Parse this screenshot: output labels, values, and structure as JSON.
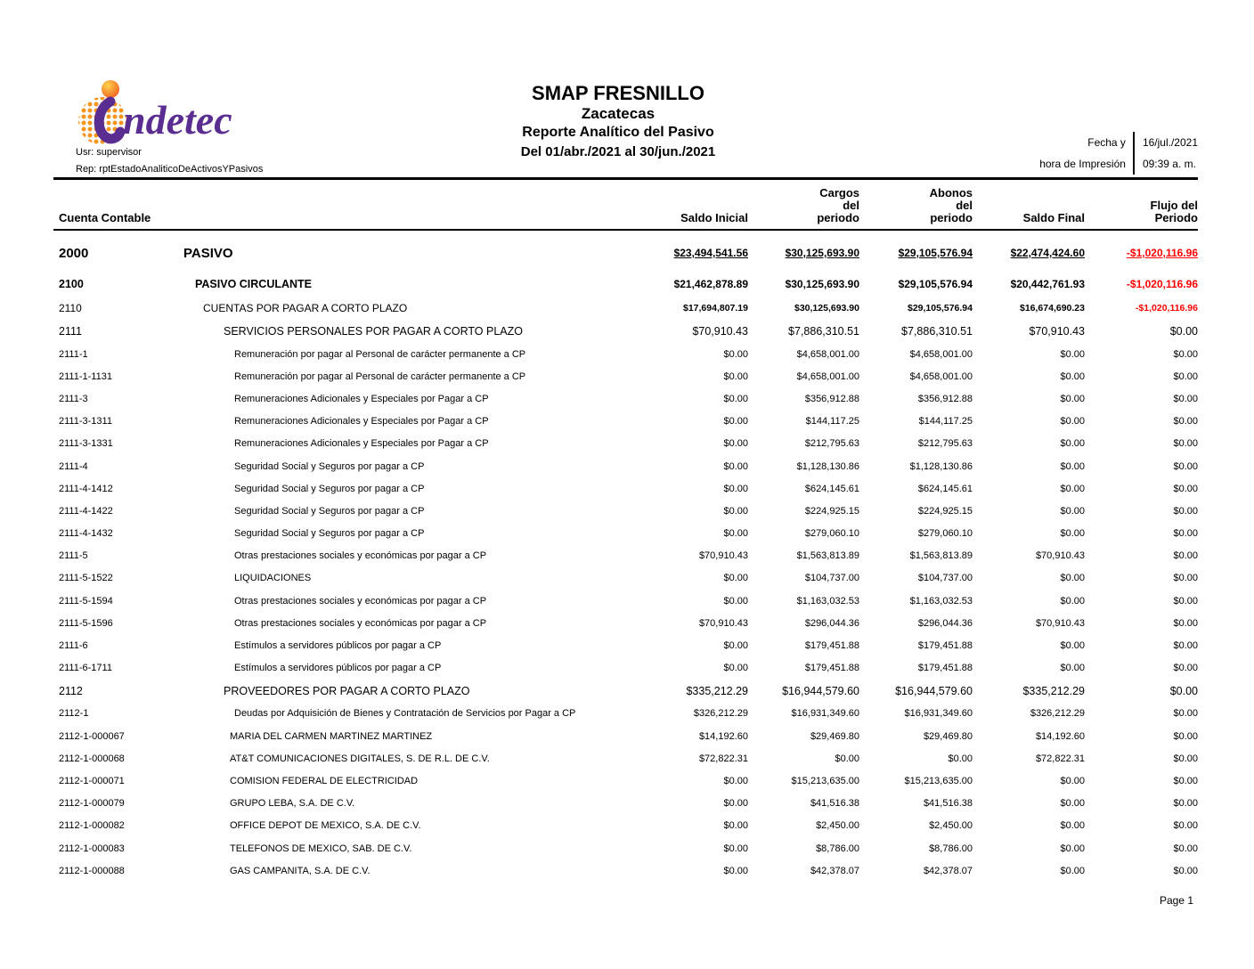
{
  "logo": {
    "name": "indetec",
    "text": "ndetec"
  },
  "meta": {
    "user_line": "Usr: supervisor",
    "report_line": "Rep: rptEstadoAnaliticoDeActivosYPasivos"
  },
  "title": {
    "line1": "SMAP FRESNILLO",
    "line2": "Zacatecas",
    "line3": "Reporte Analítico del Pasivo",
    "line4": "Del 01/abr./2021 al 30/jun./2021"
  },
  "print_info": {
    "label_line1": "Fecha y",
    "label_line2": "hora de Impresión",
    "date": "16/jul./2021",
    "time": "09:39 a. m."
  },
  "table": {
    "account_header": "Cuenta Contable",
    "columns": {
      "saldo_inicial": "Saldo Inicial",
      "cargos": "Cargos\ndel\nperiodo",
      "abonos": "Abonos\ndel\nperiodo",
      "saldo_final": "Saldo Final",
      "flujo": "Flujo del\nPeriodo"
    },
    "rows": [
      {
        "code": "2000",
        "desc": "PASIVO",
        "level": 0,
        "values": [
          "$23,494,541.56",
          "$30,125,693.90",
          "$29,105,576.94",
          "$22,474,424.60",
          "-$1,020,116.96"
        ]
      },
      {
        "code": "2100",
        "desc": "PASIVO CIRCULANTE",
        "level": 1,
        "values": [
          "$21,462,878.89",
          "$30,125,693.90",
          "$29,105,576.94",
          "$20,442,761.93",
          "-$1,020,116.96"
        ]
      },
      {
        "code": "2110",
        "desc": "CUENTAS POR PAGAR A CORTO PLAZO",
        "level": 2,
        "values": [
          "$17,694,807.19",
          "$30,125,693.90",
          "$29,105,576.94",
          "$16,674,690.23",
          "-$1,020,116.96"
        ]
      },
      {
        "code": "2111",
        "desc": "SERVICIOS PERSONALES POR PAGAR A CORTO PLAZO",
        "level": 3,
        "values": [
          "$70,910.43",
          "$7,886,310.51",
          "$7,886,310.51",
          "$70,910.43",
          "$0.00"
        ]
      },
      {
        "code": "2111-1",
        "desc": "Remuneración por pagar al Personal de carácter permanente a CP",
        "level": 4,
        "values": [
          "$0.00",
          "$4,658,001.00",
          "$4,658,001.00",
          "$0.00",
          "$0.00"
        ]
      },
      {
        "code": "2111-1-1131",
        "desc": "Remuneración por pagar al Personal de carácter permanente a CP",
        "level": 4,
        "values": [
          "$0.00",
          "$4,658,001.00",
          "$4,658,001.00",
          "$0.00",
          "$0.00"
        ]
      },
      {
        "code": "2111-3",
        "desc": "Remuneraciones Adicionales y Especiales por Pagar a CP",
        "level": 4,
        "values": [
          "$0.00",
          "$356,912.88",
          "$356,912.88",
          "$0.00",
          "$0.00"
        ]
      },
      {
        "code": "2111-3-1311",
        "desc": "Remuneraciones Adicionales y Especiales por Pagar a CP",
        "level": 4,
        "values": [
          "$0.00",
          "$144,117.25",
          "$144,117.25",
          "$0.00",
          "$0.00"
        ]
      },
      {
        "code": "2111-3-1331",
        "desc": "Remuneraciones Adicionales y Especiales por Pagar a CP",
        "level": 4,
        "values": [
          "$0.00",
          "$212,795.63",
          "$212,795.63",
          "$0.00",
          "$0.00"
        ]
      },
      {
        "code": "2111-4",
        "desc": "Seguridad Social y Seguros por pagar a CP",
        "level": 4,
        "values": [
          "$0.00",
          "$1,128,130.86",
          "$1,128,130.86",
          "$0.00",
          "$0.00"
        ]
      },
      {
        "code": "2111-4-1412",
        "desc": "Seguridad Social y Seguros por pagar a CP",
        "level": 4,
        "values": [
          "$0.00",
          "$624,145.61",
          "$624,145.61",
          "$0.00",
          "$0.00"
        ]
      },
      {
        "code": "2111-4-1422",
        "desc": "Seguridad Social y Seguros por pagar a CP",
        "level": 4,
        "values": [
          "$0.00",
          "$224,925.15",
          "$224,925.15",
          "$0.00",
          "$0.00"
        ]
      },
      {
        "code": "2111-4-1432",
        "desc": "Seguridad Social y Seguros por pagar a CP",
        "level": 4,
        "values": [
          "$0.00",
          "$279,060.10",
          "$279,060.10",
          "$0.00",
          "$0.00"
        ]
      },
      {
        "code": "2111-5",
        "desc": "Otras prestaciones sociales y económicas por pagar a CP",
        "level": 4,
        "values": [
          "$70,910.43",
          "$1,563,813.89",
          "$1,563,813.89",
          "$70,910.43",
          "$0.00"
        ]
      },
      {
        "code": "2111-5-1522",
        "desc": "LIQUIDACIONES",
        "level": 4,
        "values": [
          "$0.00",
          "$104,737.00",
          "$104,737.00",
          "$0.00",
          "$0.00"
        ]
      },
      {
        "code": "2111-5-1594",
        "desc": "Otras prestaciones sociales y económicas por pagar a CP",
        "level": 4,
        "values": [
          "$0.00",
          "$1,163,032.53",
          "$1,163,032.53",
          "$0.00",
          "$0.00"
        ]
      },
      {
        "code": "2111-5-1596",
        "desc": "Otras prestaciones sociales y económicas por pagar a CP",
        "level": 4,
        "values": [
          "$70,910.43",
          "$296,044.36",
          "$296,044.36",
          "$70,910.43",
          "$0.00"
        ]
      },
      {
        "code": "2111-6",
        "desc": "Estímulos a servidores públicos por pagar a CP",
        "level": 4,
        "values": [
          "$0.00",
          "$179,451.88",
          "$179,451.88",
          "$0.00",
          "$0.00"
        ]
      },
      {
        "code": "2111-6-1711",
        "desc": "Estímulos a servidores públicos por pagar a CP",
        "level": 4,
        "values": [
          "$0.00",
          "$179,451.88",
          "$179,451.88",
          "$0.00",
          "$0.00"
        ]
      },
      {
        "code": "2112",
        "desc": "PROVEEDORES POR PAGAR A CORTO PLAZO",
        "level": 3,
        "values": [
          "$335,212.29",
          "$16,944,579.60",
          "$16,944,579.60",
          "$335,212.29",
          "$0.00"
        ]
      },
      {
        "code": "2112-1",
        "desc": "Deudas por Adquisición de Bienes y Contratación de Servicios por Pagar a CP",
        "level": 4,
        "values": [
          "$326,212.29",
          "$16,931,349.60",
          "$16,931,349.60",
          "$326,212.29",
          "$0.00"
        ]
      },
      {
        "code": "2112-1-000067",
        "desc": "MARIA DEL CARMEN MARTINEZ MARTINEZ",
        "level": 5,
        "values": [
          "$14,192.60",
          "$29,469.80",
          "$29,469.80",
          "$14,192.60",
          "$0.00"
        ]
      },
      {
        "code": "2112-1-000068",
        "desc": "AT&T COMUNICACIONES DIGITALES, S. DE R.L. DE C.V.",
        "level": 5,
        "values": [
          "$72,822.31",
          "$0.00",
          "$0.00",
          "$72,822.31",
          "$0.00"
        ]
      },
      {
        "code": "2112-1-000071",
        "desc": "COMISION FEDERAL DE ELECTRICIDAD",
        "level": 5,
        "values": [
          "$0.00",
          "$15,213,635.00",
          "$15,213,635.00",
          "$0.00",
          "$0.00"
        ]
      },
      {
        "code": "2112-1-000079",
        "desc": "GRUPO LEBA, S.A. DE C.V.",
        "level": 5,
        "values": [
          "$0.00",
          "$41,516.38",
          "$41,516.38",
          "$0.00",
          "$0.00"
        ]
      },
      {
        "code": "2112-1-000082",
        "desc": "OFFICE DEPOT DE MEXICO, S.A. DE C.V.",
        "level": 5,
        "values": [
          "$0.00",
          "$2,450.00",
          "$2,450.00",
          "$0.00",
          "$0.00"
        ]
      },
      {
        "code": "2112-1-000083",
        "desc": "TELEFONOS DE MEXICO, SAB. DE C.V.",
        "level": 5,
        "values": [
          "$0.00",
          "$8,786.00",
          "$8,786.00",
          "$0.00",
          "$0.00"
        ]
      },
      {
        "code": "2112-1-000088",
        "desc": "GAS CAMPANITA, S.A. DE C.V.",
        "level": 5,
        "values": [
          "$0.00",
          "$42,378.07",
          "$42,378.07",
          "$0.00",
          "$0.00"
        ]
      }
    ]
  },
  "footer": {
    "page_label": "Page 1"
  },
  "colors": {
    "negative_red": "#ff0000",
    "logo_purple": "#5a2d91",
    "logo_orange": "#f7941e"
  }
}
